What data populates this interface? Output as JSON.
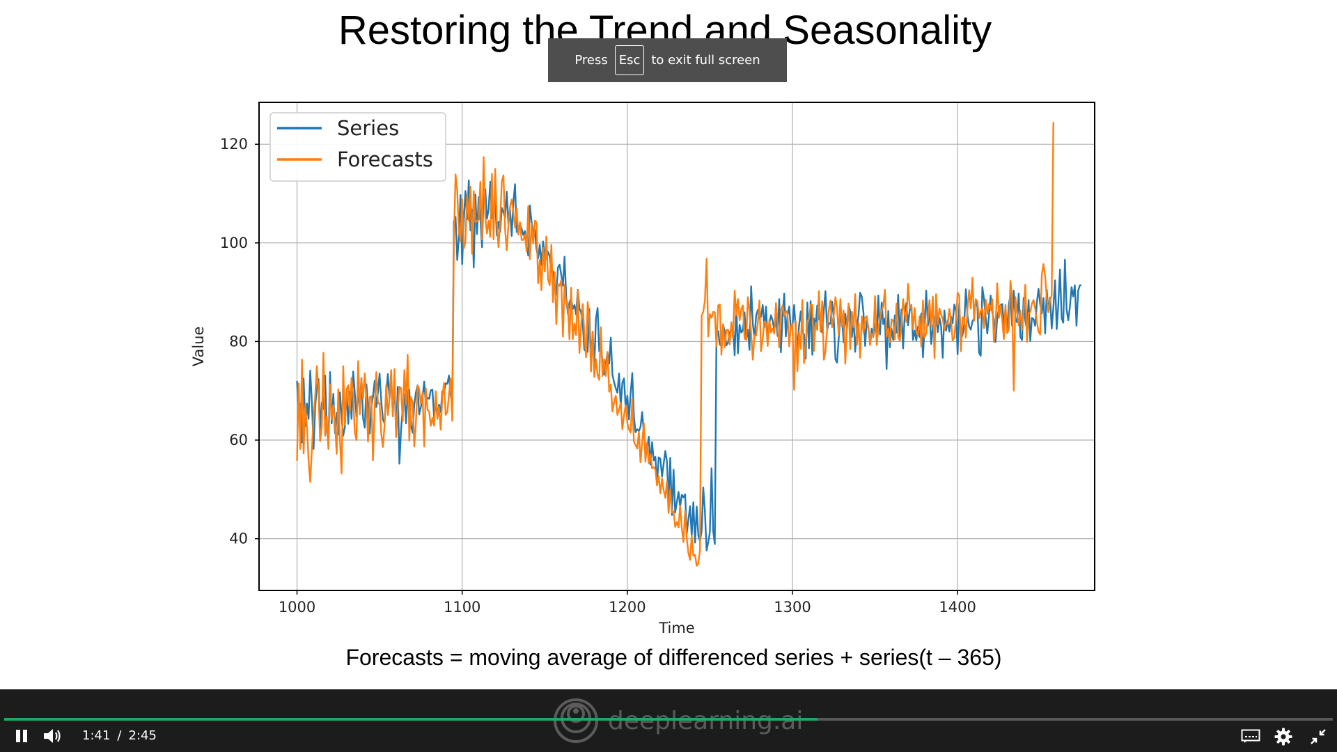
{
  "slide": {
    "title": "Restoring the Trend and Seasonality",
    "caption": "Forecasts = moving average of differenced series + series(t – 365)"
  },
  "toast": {
    "press": "Press",
    "key": "Esc",
    "rest": "to exit full screen"
  },
  "player": {
    "current_time": "1:41",
    "separator": "/",
    "duration": "2:45",
    "progress_fraction": 0.612,
    "watermark": "deeplearning.ai",
    "icons": [
      "pause-icon",
      "volume-icon",
      "captions-icon",
      "gear-icon",
      "exit-fullscreen-icon"
    ],
    "accent_color": "#22a565"
  },
  "chart_data": {
    "type": "line",
    "xlabel": "Time",
    "ylabel": "Value",
    "xlim": [
      977,
      1483
    ],
    "ylim": [
      29.5,
      128.5
    ],
    "xticks": [
      1000,
      1100,
      1200,
      1300,
      1400
    ],
    "yticks": [
      40,
      60,
      80,
      100,
      120
    ],
    "grid": true,
    "legend_position": "top-left",
    "series_colors": [
      "#1f77b4",
      "#ff7f0e"
    ],
    "series": [
      {
        "name": "Series",
        "x_start": 1000,
        "x_step": 1,
        "values": [
          72,
          64.7,
          67.4,
          59.5,
          72.5,
          62.8,
          67.4,
          64.3,
          74.1,
          67.6,
          58.2,
          66.6,
          70.8,
          72.4,
          62.3,
          67.6,
          66.3,
          73.1,
          62.5,
          59.1,
          73.8,
          63.4,
          69.4,
          61.4,
          65.5,
          61.1,
          69.7,
          64.3,
          60.9,
          62.7,
          69.9,
          63.3,
          69.8,
          64.3,
          73.9,
          69.6,
          64.8,
          69.1,
          67,
          72.6,
          64.4,
          62.5,
          71.3,
          66.8,
          61.3,
          66.8,
          68.8,
          72,
          66.7,
          69.8,
          73.5,
          67.9,
          64.2,
          63.4,
          69.2,
          73.4,
          68.4,
          72.7,
          65.2,
          71.6,
          61.1,
          70.8,
          55.2,
          62.2,
          66.6,
          69.2,
          63.4,
          70,
          70.2,
          62.9,
          61.5,
          67.2,
          69.7,
          71.1,
          65.2,
          66.7,
          68.7,
          71.9,
          67.3,
          68.6,
          68.4,
          70.1,
          70.2,
          64.6,
          67.5,
          64.7,
          67.2,
          65.7,
          69.9,
          69.6,
          71.5,
          71.4,
          73.1,
          69.5,
          66.6,
          104.3,
          105.3,
          96.5,
          101.2,
          109.7,
          95.7,
          104.7,
          110.5,
          104.8,
          112.7,
          102.5,
          106.8,
          95,
          109.8,
          101.8,
          109.3,
          105,
          99.1,
          110.1,
          110.9,
          104.9,
          106.7,
          112.4,
          105,
          105.8,
          108.6,
          101.5,
          104.3,
          102.2,
          107.1,
          106.2,
          105.1,
          110.4,
          103.8,
          106.7,
          101.4,
          108.2,
          111.9,
          102.2,
          103.3,
          103.6,
          102.9,
          101.6,
          102.4,
          99.3,
          97.4,
          107.6,
          104.3,
          102.1,
          102.7,
          98.8,
          96.9,
          99.6,
          95.5,
          100.3,
          97.3,
          96.8,
          98.2,
          97.2,
          94.1,
          94.2,
          91.9,
          89.5,
          95,
          95.6,
          93.5,
          91.3,
          97.2,
          89.1,
          85.6,
          88,
          88.7,
          86.6,
          87.4,
          85.5,
          90.5,
          86.7,
          85.9,
          83.6,
          78.3,
          78,
          77.9,
          86.6,
          76,
          82,
          74.7,
          84.6,
          86.8,
          78,
          79.9,
          75.3,
          73.3,
          75.6,
          77.8,
          75.5,
          80.8,
          73.3,
          71.7,
          70.5,
          69.6,
          73.5,
          66.8,
          71.6,
          72.5,
          66.5,
          69,
          64.2,
          69.5,
          73.6,
          64.8,
          61.6,
          62.2,
          61.8,
          62.7,
          65.7,
          61.4,
          58.4,
          58.1,
          60.7,
          55,
          59.6,
          55.9,
          56.6,
          51,
          56.5,
          56.2,
          52.6,
          55.1,
          57.8,
          55.6,
          47.3,
          56.4,
          44.8,
          54,
          45.3,
          47.4,
          49.5,
          46.5,
          48.9,
          48.4,
          49,
          41,
          43.9,
          46.6,
          40.6,
          47.4,
          39.2,
          46.5,
          40.7,
          39.5,
          41.6,
          50.4,
          45.5,
          37.6,
          39.3,
          41.3,
          54.3,
          41.5,
          38.9,
          82,
          82.1,
          79.4,
          79.1,
          83.4,
          82,
          79.2,
          79.8,
          81.9,
          82.3,
          83.1,
          77.2,
          87.5,
          77.6,
          83.4,
          81.8,
          82.3,
          85.9,
          80.4,
          82.4,
          78.3,
          91.2,
          83.5,
          80.8,
          85.2,
          86.4,
          84.6,
          85.1,
          87.4,
          82.9,
          87.1,
          80,
          83.7,
          85.3,
          84.3,
          82.2,
          84.8,
          81.1,
          88.6,
          77.8,
          85.2,
          89.7,
          81,
          85.3,
          87.1,
          82.7,
          83.2,
          87.4,
          82.3,
          78.9,
          83.2,
          86.1,
          82,
          81.5,
          76.5,
          87.9,
          78.6,
          88.2,
          77.3,
          84.7,
          83.1,
          87.3,
          84.5,
          84.3,
          81.8,
          86.4,
          90.2,
          82.3,
          83.7,
          83.6,
          88.1,
          84.8,
          76.4,
          75.7,
          80.5,
          84.9,
          84.6,
          79.8,
          85.6,
          82.6,
          87.4,
          86.1,
          80.9,
          84.6,
          77.9,
          82.8,
          85.4,
          89.9,
          89.1,
          85.8,
          79.1,
          84.2,
          82.7,
          79.4,
          82.6,
          80.9,
          83.5,
          80.9,
          89.3,
          81.4,
          87.9,
          83.5,
          84.7,
          74.4,
          86.2,
          78.8,
          82.6,
          80.3,
          85.3,
          81.8,
          89.5,
          81,
          86.5,
          78.6,
          85.7,
          87.8,
          83.3,
          86.3,
          87.4,
          80.3,
          82.2,
          80.2,
          83,
          80.9,
          85.7,
          76.8,
          82.9,
          90.3,
          83.2,
          86.6,
          79.5,
          82.9,
          84.5,
          85.8,
          81.9,
          84.8,
          83.2,
          76.7,
          86.3,
          82.2,
          84.3,
          82,
          85,
          83.7,
          87.5,
          86.2,
          77.4,
          87.7,
          80.5,
          81.3,
          83.4,
          90.6,
          85.1,
          83,
          82.4,
          84.1,
          84.7,
          88.5,
          87,
          77.7,
          77.1,
          91,
          88.6,
          84.8,
          81.6,
          85.2,
          89.3,
          85.9,
          84.4,
          79.9,
          84.8,
          86.8,
          87.4,
          87.6,
          83.3,
          86.7,
          81.9,
          87.5,
          89.5,
          83.2,
          90.3,
          84.5,
          83.9,
          89.7,
          80.9,
          80.3,
          88.8,
          84.1,
          82.6,
          88.4,
          80.1,
          84.8,
          84.5,
          83.2,
          87.9,
          90.7,
          87.6,
          85.7,
          88.8,
          81.6,
          90.5,
          86.1,
          88.9,
          82.6,
          86.9,
          92.4,
          82.5,
          87.5,
          94.6,
          84.7,
          83.8,
          96.6,
          86.5,
          84.3,
          87,
          91,
          89.1,
          91.4,
          83.2,
          90.3,
          91.4,
          91.4
        ]
      },
      {
        "name": "Forecasts",
        "x_start": 1000,
        "x_step": 1,
        "values": [
          55.8,
          71.5,
          58.2,
          76.3,
          57.3,
          67.2,
          62.7,
          56,
          51.5,
          58.1,
          64.8,
          68.7,
          75,
          69.7,
          59.8,
          62.6,
          77.7,
          60.9,
          64.7,
          58.2,
          71.3,
          64.2,
          67.1,
          63.3,
          57.2,
          70.3,
          59.8,
          53.2,
          75,
          63.1,
          70.3,
          71.1,
          65.6,
          72.6,
          69.1,
          61.6,
          60,
          76,
          65.2,
          72.5,
          68.4,
          73.5,
          68.2,
          59.7,
          68.7,
          68.9,
          55.9,
          66.2,
          73.8,
          67.4,
          67.5,
          61.3,
          58.6,
          62.9,
          71.1,
          65.1,
          68.3,
          74.2,
          64.8,
          74.4,
          60.6,
          66.6,
          70.8,
          70.5,
          63.8,
          74.2,
          67.4,
          77.3,
          59.9,
          68.7,
          67.7,
          58.7,
          63.7,
          71.1,
          70.3,
          67.4,
          69.5,
          58.7,
          70.5,
          66.2,
          65.8,
          62.9,
          64.5,
          62.9,
          69.9,
          64.3,
          66.7,
          62.1,
          68.7,
          71.6,
          65.1,
          65.7,
          69.1,
          72.5,
          63.9,
          100.6,
          113.9,
          110.6,
          102.1,
          100.4,
          108.8,
          98.9,
          100.2,
          109.8,
          104.5,
          111.4,
          97.8,
          110.5,
          104.2,
          104.4,
          104.7,
          112.4,
          100.7,
          117.4,
          105.4,
          101.9,
          104.5,
          101.2,
          114,
          100.7,
          115,
          104.3,
          99.1,
          104.3,
          112.4,
          113.7,
          102.6,
          98.5,
          103.5,
          107.4,
          108.8,
          106.4,
          103.1,
          107,
          101.7,
          104.2,
          100.6,
          100.6,
          101.7,
          98.3,
          107.4,
          96.7,
          103.9,
          99.8,
          104.5,
          104.2,
          91.8,
          96.5,
          90.4,
          99,
          94.2,
          101.3,
          92.6,
          91.4,
          99.6,
          88,
          94.1,
          83.5,
          91.6,
          91.3,
          92.4,
          81,
          91.5,
          87.6,
          87.3,
          80.4,
          90.9,
          80.5,
          83.6,
          81.3,
          90.4,
          77.7,
          83.2,
          87.6,
          81.5,
          76.8,
          88,
          84.8,
          73.9,
          81.9,
          72.8,
          76.4,
          73.2,
          72.2,
          82.9,
          73,
          76.4,
          73,
          77.9,
          69.8,
          71.3,
          65.8,
          67.7,
          69,
          65.1,
          66.2,
          67.6,
          62.2,
          65,
          67.1,
          63.5,
          62.2,
          61.5,
          68.3,
          59.7,
          59,
          58.3,
          61.7,
          55.5,
          59.6,
          63.4,
          55.6,
          59.5,
          55.3,
          57.2,
          54.3,
          54.5,
          54,
          50.8,
          52.7,
          49.2,
          52.2,
          49.9,
          48.3,
          51.6,
          45.2,
          50,
          45.3,
          45.5,
          42.4,
          43.4,
          42.3,
          46.7,
          42.1,
          39.3,
          45.6,
          40.1,
          37.1,
          35.7,
          40.6,
          36.5,
          36.7,
          34.5,
          35,
          37.7,
          85.2,
          86,
          88.3,
          96.8,
          81,
          85.6,
          84.8,
          86,
          85.9,
          79,
          87.3,
          87.5,
          77.3,
          83.5,
          78.8,
          82.3,
          82.4,
          79.4,
          83.9,
          80.7,
          90.3,
          85.3,
          88.6,
          84.3,
          86.6,
          87.3,
          80.6,
          80.3,
          89,
          86.3,
          81.7,
          76.3,
          81.3,
          81.2,
          83.7,
          88.3,
          78,
          80.6,
          84,
          83.8,
          79.1,
          84.4,
          81.8,
          82.6,
          81.6,
          87.8,
          83.4,
          78.8,
          86.1,
          87.3,
          85.2,
          86.3,
          85.6,
          79,
          82.9,
          83.6,
          70.2,
          84.1,
          74,
          81.8,
          78.5,
          88.4,
          75.6,
          79.4,
          84.1,
          84.6,
          87.4,
          87.4,
          78.1,
          83.8,
          82.3,
          90.2,
          82,
          88.2,
          76.3,
          78,
          82.5,
          86.4,
          88.3,
          82.9,
          85.2,
          89,
          86.9,
          81.3,
          88.6,
          83,
          86.3,
          75.5,
          83.4,
          87.7,
          78.4,
          86,
          82.9,
          89.6,
          79.3,
          83.8,
          76.7,
          85.1,
          81.7,
          84.8,
          85.1,
          82.7,
          79.3,
          81.6,
          81,
          89.2,
          79.3,
          82.6,
          84.8,
          86.4,
          87.1,
          90.5,
          81,
          82.6,
          79.8,
          84.5,
          84.2,
          80.4,
          87.7,
          80.9,
          80.1,
          83.3,
          88.6,
          85.7,
          84,
          91.7,
          86.9,
          87.3,
          82.6,
          86.8,
          81.8,
          81.2,
          85.1,
          79,
          88.3,
          80.8,
          81.6,
          84.8,
          88.4,
          83,
          89.1,
          76.6,
          89.6,
          83.5,
          86.7,
          85.5,
          84.6,
          82.3,
          83.8,
          83.4,
          86.6,
          84.4,
          80.2,
          80.8,
          84.5,
          89.9,
          89.3,
          78,
          84.9,
          84.9,
          80.8,
          86.7,
          90.4,
          86.7,
          92.9,
          84.2,
          88.6,
          88.1,
          84.7,
          86.2,
          86.7,
          82.7,
          88.5,
          85.6,
          87.6,
          86.4,
          88.6,
          79.9,
          83.1,
          91.8,
          84.8,
          87.3,
          84.4,
          80.5,
          87.4,
          81.7,
          82.4,
          92.3,
          88.9,
          70,
          89,
          85.8,
          83.3,
          86.3,
          82.4,
          86,
          91.5,
          79.9,
          85.8,
          85.9,
          87.7,
          88.4,
          86.7,
          84,
          82,
          81.4,
          93.6,
          95.7,
          93.2,
          88.9,
          85.9,
          88.3,
          89.4,
          124.5
        ]
      }
    ]
  }
}
